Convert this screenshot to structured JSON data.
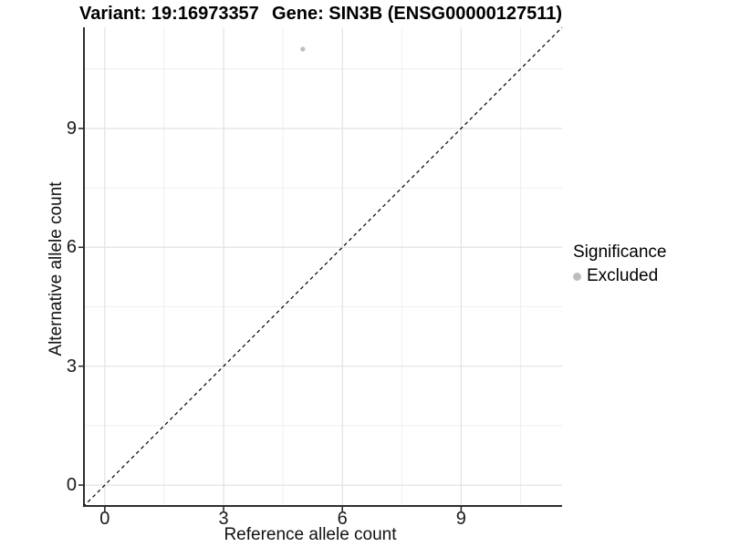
{
  "header": {
    "variant_title": "Variant: 19:16973357",
    "gene_title": "Gene: SIN3B (ENSG00000127511)"
  },
  "legend": {
    "title": "Significance",
    "position": "right",
    "items": [
      {
        "label": "Excluded",
        "color": "#bebebe"
      }
    ]
  },
  "chart_data": {
    "type": "scatter",
    "xlabel": "Reference allele count",
    "ylabel": "Alternative allele count",
    "xlim": [
      -0.55,
      11.55
    ],
    "ylim": [
      -0.55,
      11.55
    ],
    "x_ticks": [
      0,
      3,
      6,
      9
    ],
    "y_ticks": [
      0,
      3,
      6,
      9
    ],
    "x_minor": [
      1.5,
      4.5,
      7.5,
      10.5
    ],
    "y_minor": [
      1.5,
      4.5,
      7.5,
      10.5
    ],
    "grid": "major+minor",
    "legend_position": "right",
    "series": [
      {
        "name": "Excluded",
        "color": "#bebebe",
        "point_radius": 2.6,
        "points": [
          {
            "x": 5,
            "y": 11
          }
        ]
      }
    ],
    "reference_line": {
      "type": "identity",
      "equation": "y = x",
      "style": "dashed",
      "color": "#000000"
    }
  },
  "colors": {
    "background": "#ffffff",
    "grid_major": "#e2e2e2",
    "grid_minor": "#efefef",
    "axis_line": "#2e2e2e",
    "tick_mark": "#2e2e2e",
    "point": "#bebebe"
  }
}
